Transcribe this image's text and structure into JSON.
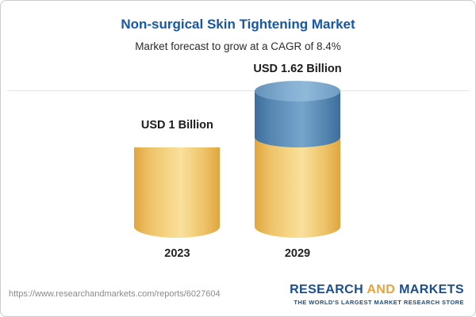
{
  "header": {
    "title": "Non-surgical Skin Tightening Market",
    "subtitle": "Market forecast to grow at a CAGR of 8.4%"
  },
  "chart_data": {
    "type": "bar",
    "title": "Non-surgical Skin Tightening Market",
    "subtitle": "Market forecast to grow at a CAGR of 8.4%",
    "categories": [
      "2023",
      "2029"
    ],
    "values": [
      1.0,
      1.62
    ],
    "value_labels": [
      "USD 1 Billion",
      "USD 1.62 Billion"
    ],
    "unit": "USD Billion",
    "cagr": "8.4%",
    "ylim": [
      0,
      1.62
    ],
    "legend": "none",
    "grid": "single top gridline",
    "colors": {
      "base_segment": "#F2CD6D",
      "growth_segment": "#5B8DB8",
      "title": "#1558A7"
    }
  },
  "footer": {
    "url": "https://www.researchandmarkets.com/reports/6027604",
    "logo": {
      "research": "RESEARCH",
      "and": "AND",
      "markets": "MARKETS",
      "tagline": "THE WORLD'S LARGEST MARKET RESEARCH STORE"
    }
  }
}
